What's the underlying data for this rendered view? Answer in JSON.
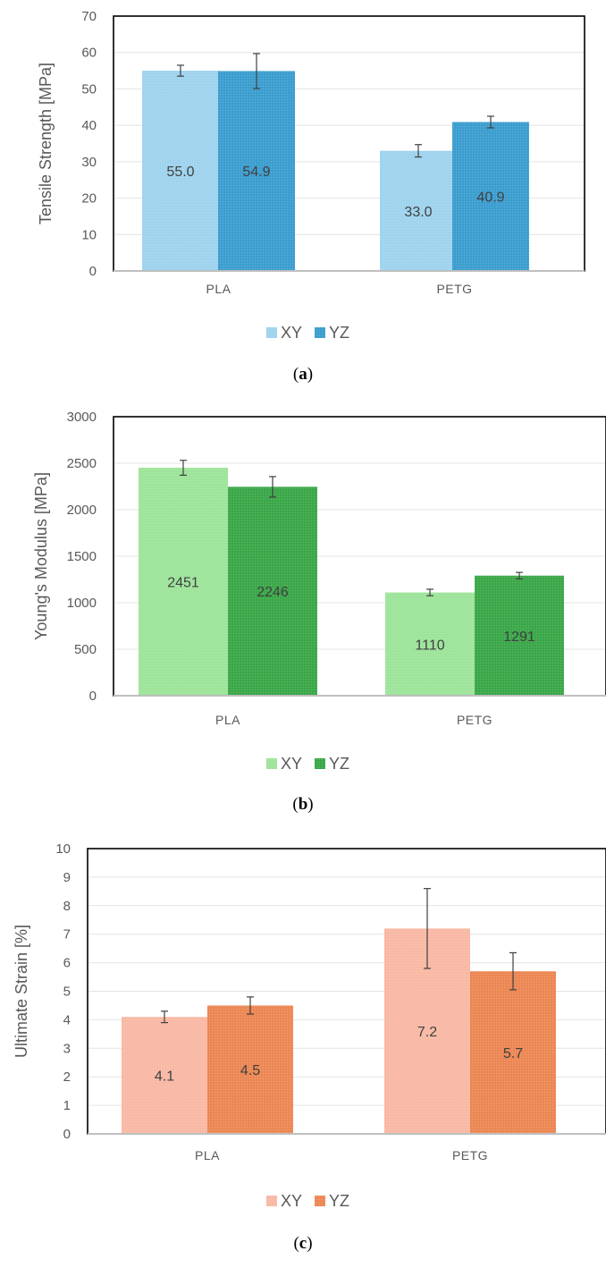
{
  "chart_data": [
    {
      "type": "bar",
      "panel": "a",
      "categories": [
        "PLA",
        "PETG"
      ],
      "ylabel": "Tensile Strength [MPa]",
      "ylim": [
        0,
        70
      ],
      "yticks": [
        0,
        10,
        20,
        30,
        40,
        50,
        60,
        70
      ],
      "grid": true,
      "legend_position": "bottom",
      "series": [
        {
          "name": "XY",
          "values": [
            55.0,
            33.0
          ],
          "labels": [
            "55.0",
            "33.0"
          ],
          "errors": [
            1.5,
            1.7
          ],
          "color": "#9fd3ee"
        },
        {
          "name": "YZ",
          "values": [
            54.9,
            40.9
          ],
          "labels": [
            "54.9",
            "40.9"
          ],
          "errors": [
            4.8,
            1.6
          ],
          "color": "#3d9ecf"
        }
      ],
      "caption": "a"
    },
    {
      "type": "bar",
      "panel": "b",
      "categories": [
        "PLA",
        "PETG"
      ],
      "ylabel": "Young's Modulus [MPa]",
      "ylim": [
        0,
        3000
      ],
      "yticks": [
        0,
        500,
        1000,
        1500,
        2000,
        2500,
        3000
      ],
      "grid": true,
      "legend_position": "bottom",
      "series": [
        {
          "name": "XY",
          "values": [
            2451,
            1110
          ],
          "labels": [
            "2451",
            "1110"
          ],
          "errors": [
            80,
            35
          ],
          "color": "#9ee49b"
        },
        {
          "name": "YZ",
          "values": [
            2246,
            1291
          ],
          "labels": [
            "2246",
            "1291"
          ],
          "errors": [
            110,
            35
          ],
          "color": "#3ca84a"
        }
      ],
      "caption": "b"
    },
    {
      "type": "bar",
      "panel": "c",
      "categories": [
        "PLA",
        "PETG"
      ],
      "ylabel": "Ultimate Strain [%]",
      "ylim": [
        0,
        10
      ],
      "yticks": [
        0,
        1,
        2,
        3,
        4,
        5,
        6,
        7,
        8,
        9,
        10
      ],
      "grid": true,
      "legend_position": "bottom",
      "series": [
        {
          "name": "XY",
          "values": [
            4.1,
            7.2
          ],
          "labels": [
            "4.1",
            "7.2"
          ],
          "errors": [
            0.2,
            1.4
          ],
          "color": "#f8b9a5"
        },
        {
          "name": "YZ",
          "values": [
            4.5,
            5.7
          ],
          "labels": [
            "4.5",
            "5.7"
          ],
          "errors": [
            0.3,
            0.65
          ],
          "color": "#ec8855"
        }
      ],
      "caption": "c"
    }
  ]
}
